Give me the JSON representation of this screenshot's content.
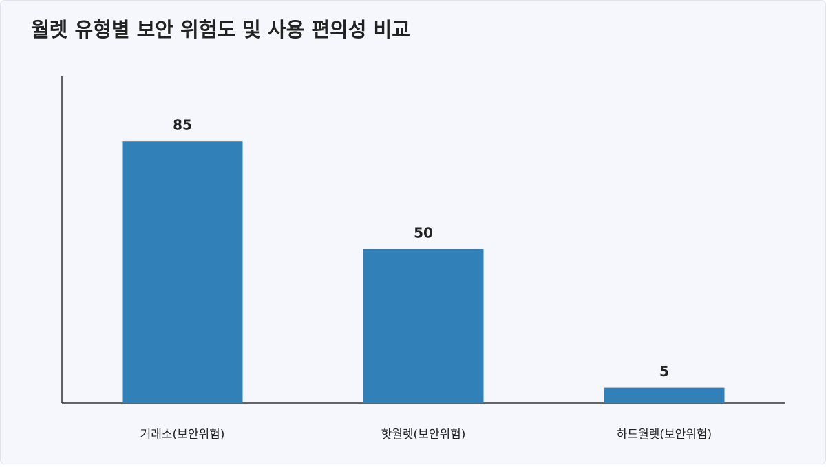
{
  "chart_data": {
    "type": "bar",
    "title": "월렛 유형별 보안 위험도 및 사용 편의성 비교",
    "categories": [
      "거래소(보안위험)",
      "핫월렛(보안위험)",
      "하드월렛(보안위험)"
    ],
    "values": [
      85,
      50,
      5
    ],
    "color": "#3180b8",
    "ylim": [
      0,
      106.25
    ]
  }
}
